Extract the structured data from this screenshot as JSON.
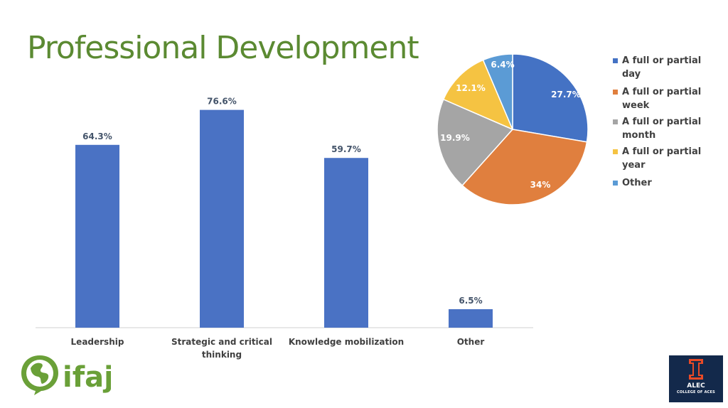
{
  "slide": {
    "title": "Professional Development"
  },
  "chart_data": [
    {
      "type": "bar",
      "categories": [
        "Leadership",
        "Strategic and critical thinking",
        "Knowledge mobilization",
        "Other"
      ],
      "values": [
        64.3,
        76.6,
        59.7,
        6.5
      ],
      "data_labels": [
        "64.3%",
        "76.6%",
        "59.7%",
        "6.5%"
      ],
      "title": "",
      "xlabel": "",
      "ylabel": "",
      "ylim": [
        0,
        100
      ],
      "grid": false,
      "color": "#4a72c4"
    },
    {
      "type": "pie",
      "categories": [
        "A full or partial day",
        "A full or partial week",
        "A full or partial month",
        "A full or partial year",
        "Other"
      ],
      "values": [
        27.7,
        34,
        19.9,
        12.1,
        6.4
      ],
      "data_labels": [
        "27.7%",
        "34%",
        "19.9%",
        "12.1%",
        "6.4%"
      ],
      "colors": [
        "#4472c4",
        "#e07f3e",
        "#a5a5a5",
        "#f5c342",
        "#5b9bd5"
      ],
      "legend": "right",
      "title": ""
    }
  ],
  "logos": {
    "left_logo_text": "ifaj",
    "right_logo_text_1": "ALEC",
    "right_logo_text_2": "COLLEGE OF ACES"
  }
}
